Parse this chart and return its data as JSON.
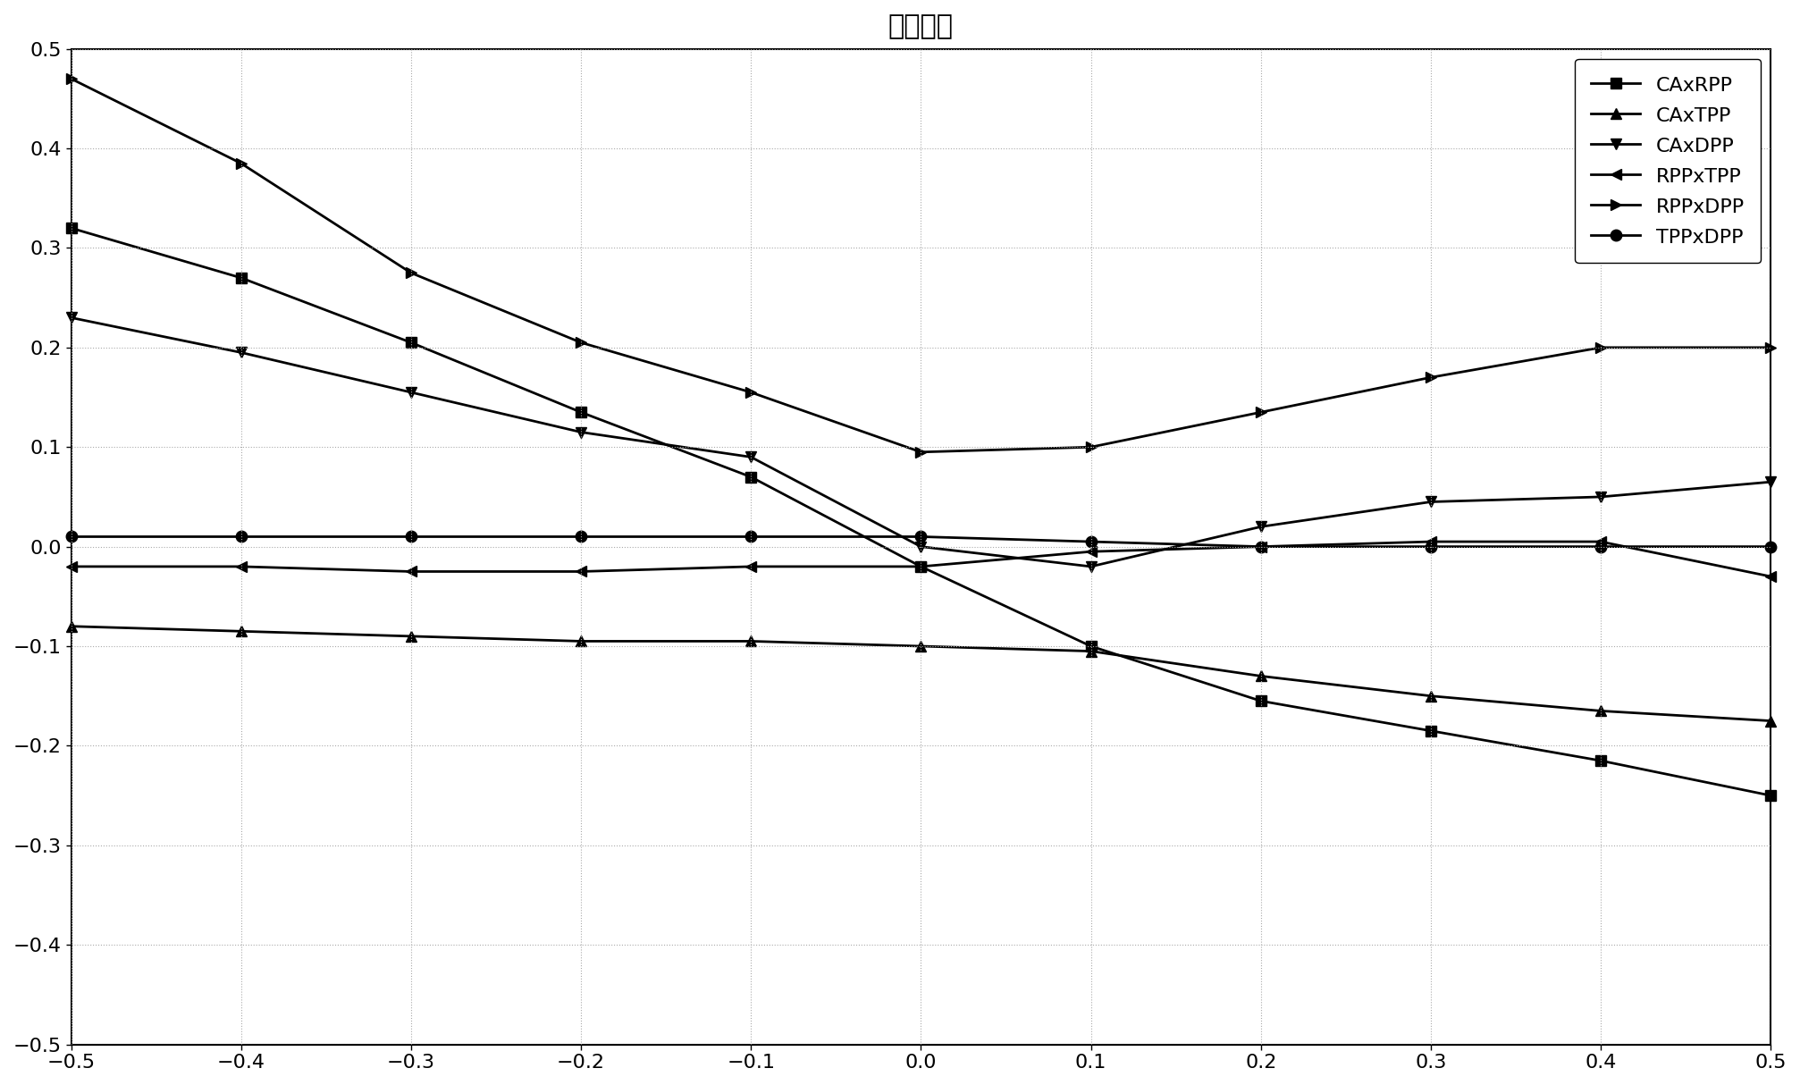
{
  "title": "径向倾斜",
  "x": [
    -0.5,
    -0.4,
    -0.3,
    -0.2,
    -0.1,
    0,
    0.1,
    0.2,
    0.3,
    0.4,
    0.5
  ],
  "CAxRPP": [
    0.32,
    0.27,
    0.205,
    0.135,
    0.07,
    -0.02,
    -0.1,
    -0.155,
    -0.185,
    -0.215,
    -0.25
  ],
  "CAxTPP": [
    -0.08,
    -0.085,
    -0.09,
    -0.095,
    -0.095,
    -0.1,
    -0.105,
    -0.13,
    -0.15,
    -0.165,
    -0.175
  ],
  "CAxDPP": [
    0.23,
    0.195,
    0.155,
    0.115,
    0.09,
    0.0,
    -0.02,
    0.02,
    0.045,
    0.05,
    0.065
  ],
  "RPPxTPP": [
    -0.02,
    -0.02,
    -0.025,
    -0.025,
    -0.02,
    -0.02,
    -0.005,
    0.0,
    0.005,
    0.005,
    -0.03
  ],
  "RPPxDPP": [
    0.47,
    0.385,
    0.275,
    0.205,
    0.155,
    0.095,
    0.1,
    0.135,
    0.17,
    0.2,
    0.2
  ],
  "TPPxDPP": [
    0.01,
    0.01,
    0.01,
    0.01,
    0.01,
    0.01,
    0.005,
    0.0,
    0.0,
    0.0,
    0.0
  ],
  "xlim": [
    -0.5,
    0.5
  ],
  "ylim": [
    -0.5,
    0.5
  ],
  "xticks": [
    -0.5,
    -0.4,
    -0.3,
    -0.2,
    -0.1,
    0,
    0.1,
    0.2,
    0.3,
    0.4,
    0.5
  ],
  "yticks": [
    -0.5,
    -0.4,
    -0.3,
    -0.2,
    -0.1,
    0,
    0.1,
    0.2,
    0.3,
    0.4,
    0.5
  ],
  "background_color": "#ffffff",
  "line_color": "#000000",
  "grid_color": "#aaaaaa",
  "title_fontsize": 22,
  "tick_fontsize": 16,
  "legend_fontsize": 16
}
